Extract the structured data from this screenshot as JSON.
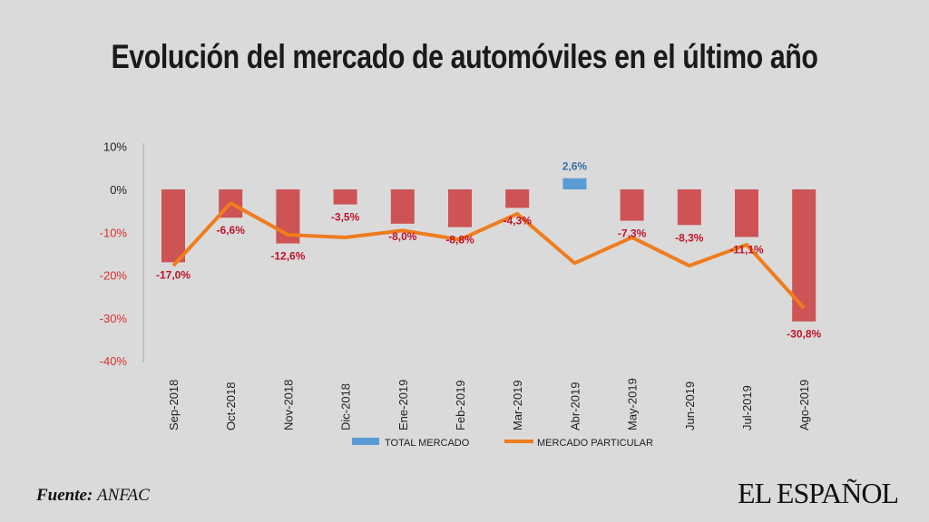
{
  "header": {
    "title": "Evolución del mercado de automóviles en el último año"
  },
  "footer": {
    "source_label": "Fuente:",
    "source_value": "ANFAC",
    "logo": "EL ESPAÑOL"
  },
  "colors": {
    "negative_bar": "#cd5355",
    "positive_bar": "#5b9bd5",
    "line": "#f07c1e",
    "negative_label": "#c0142a",
    "positive_label": "#3b6fa6"
  },
  "chart_data": {
    "type": "bar",
    "title": "Evolución del mercado de automóviles en el último año",
    "categories": [
      "Sep-2018",
      "Oct-2018",
      "Nov-2018",
      "Dic-2018",
      "Ene-2019",
      "Feb-2019",
      "Mar-2019",
      "Abr-2019",
      "May-2019",
      "Jun-2019",
      "Jul-2019",
      "Ago-2019"
    ],
    "ylim": [
      -40,
      10
    ],
    "yticks": [
      {
        "v": 10,
        "label": "10%"
      },
      {
        "v": 0,
        "label": "0%"
      },
      {
        "v": -10,
        "label": "-10%"
      },
      {
        "v": -20,
        "label": "-20%"
      },
      {
        "v": -30,
        "label": "-30%"
      },
      {
        "v": -40,
        "label": "-40%"
      }
    ],
    "series": [
      {
        "name": "TOTAL MERCADO",
        "type": "bar",
        "values": [
          -17.0,
          -6.6,
          -12.6,
          -3.5,
          -8.0,
          -8.8,
          -4.3,
          2.6,
          -7.3,
          -8.3,
          -11.1,
          -30.8
        ],
        "labels": [
          "-17,0%",
          "-6,6%",
          "-12,6%",
          "-3,5%",
          "-8,0%",
          "-8,8%",
          "-4,3%",
          "2,6%",
          "-7,3%",
          "-8,3%",
          "-11,1%",
          "-30,8%"
        ]
      },
      {
        "name": "MERCADO PARTICULAR",
        "type": "line",
        "values": [
          -17.8,
          -3.2,
          -10.6,
          -11.2,
          -9.6,
          -11.7,
          -5.7,
          -17.2,
          -11.2,
          -17.8,
          -12.9,
          -27.7
        ]
      }
    ],
    "legend": "bottom"
  }
}
